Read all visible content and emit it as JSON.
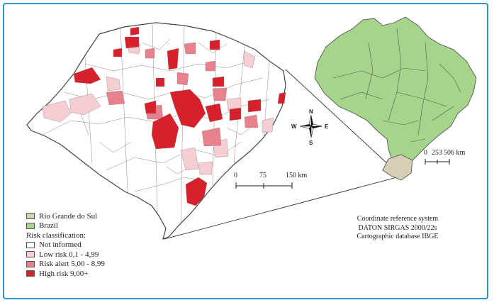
{
  "legend": {
    "rs_label": "Rio Grande do Sul",
    "brazil_label": "Brazil",
    "classification_title": "Risk classification:",
    "classes": [
      {
        "label": "Not informed",
        "color": "#ffffff"
      },
      {
        "label": "Low risk 0,1 - 4,99",
        "color": "#f6cdd3"
      },
      {
        "label": "Risk alert 5,00 - 8,99",
        "color": "#e9808d"
      },
      {
        "label": "High risk 9,00+",
        "color": "#d6202b"
      }
    ],
    "rs_color": "#d8ceb6",
    "brazil_color": "#a6d48a"
  },
  "compass": {
    "n": "N",
    "s": "S",
    "e": "E",
    "w": "W"
  },
  "scale_rs": {
    "ticks": [
      "0",
      "75",
      "150 km"
    ]
  },
  "scale_brazil": {
    "ticks": [
      "0",
      "253",
      "506 km"
    ]
  },
  "crs": {
    "line1": "Coordinate reference system",
    "line2": "DATON SIRGAS 2000/22s",
    "line3": "Cartographic database IBGE"
  }
}
